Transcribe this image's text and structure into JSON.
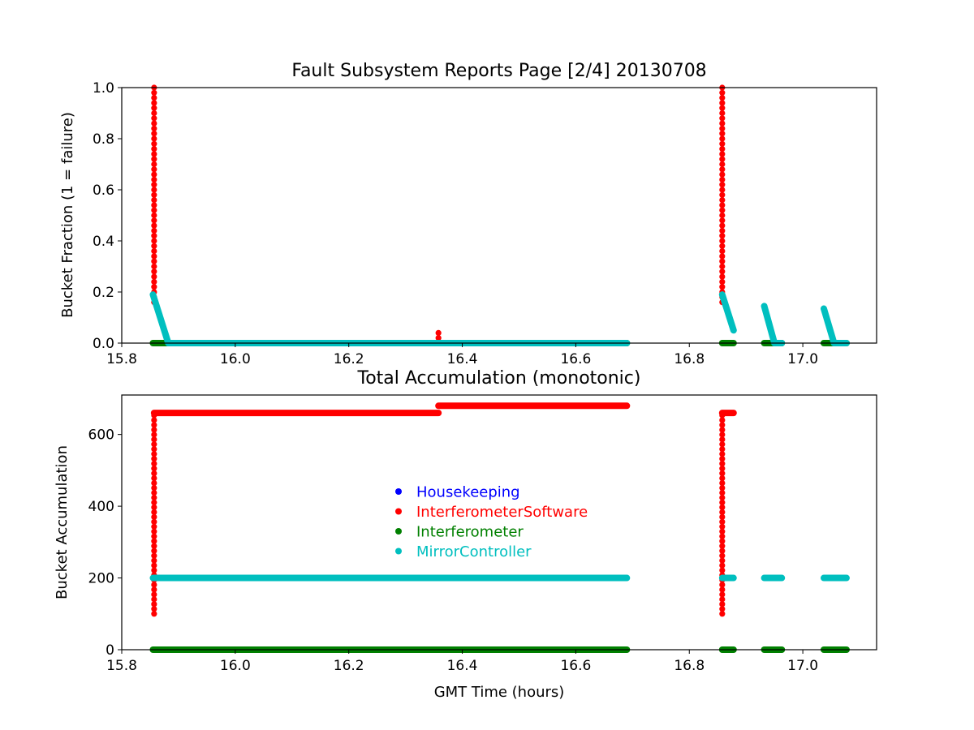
{
  "chart_data": [
    {
      "type": "scatter",
      "title": "Fault Subsystem Reports Page [2/4] 20130708",
      "xlabel": "",
      "ylabel": "Bucket Fraction (1 = failure)",
      "xlim": [
        15.8,
        17.13
      ],
      "ylim": [
        0.0,
        1.0
      ],
      "x_ticks": [
        "15.8",
        "16.0",
        "16.2",
        "16.4",
        "16.6",
        "16.8",
        "17.0"
      ],
      "y_ticks": [
        "0.0",
        "0.2",
        "0.4",
        "0.6",
        "0.8",
        "1.0"
      ],
      "grid": false,
      "series": [
        {
          "name": "InterferometerSoftware",
          "color": "#ff0000",
          "segments": [
            {
              "kind": "vertical",
              "x": 15.857,
              "y_from": 0.16,
              "y_to": 1.0,
              "step": 0.02
            },
            {
              "kind": "vertical",
              "x": 16.358,
              "y_from": 0.02,
              "y_to": 0.04,
              "step": 0.02
            },
            {
              "kind": "vertical",
              "x": 16.858,
              "y_from": 0.16,
              "y_to": 1.0,
              "step": 0.02
            }
          ]
        },
        {
          "name": "Interferometer",
          "color": "#008000",
          "segments": [
            {
              "kind": "line",
              "x_from": 15.855,
              "y_from": 0.0,
              "x_to": 16.69,
              "y_to": 0.0
            },
            {
              "kind": "line",
              "x_from": 16.858,
              "y_from": 0.0,
              "x_to": 16.878,
              "y_to": 0.0
            },
            {
              "kind": "line",
              "x_from": 16.932,
              "y_from": 0.0,
              "x_to": 16.963,
              "y_to": 0.0
            },
            {
              "kind": "line",
              "x_from": 17.037,
              "y_from": 0.0,
              "x_to": 17.077,
              "y_to": 0.0
            }
          ]
        },
        {
          "name": "MirrorController",
          "color": "#00bfbf",
          "segments": [
            {
              "kind": "line",
              "x_from": 15.855,
              "y_from": 0.19,
              "x_to": 15.882,
              "y_to": 0.0
            },
            {
              "kind": "line",
              "x_from": 15.882,
              "y_from": 0.0,
              "x_to": 16.69,
              "y_to": 0.0
            },
            {
              "kind": "line",
              "x_from": 16.858,
              "y_from": 0.19,
              "x_to": 16.878,
              "y_to": 0.05
            },
            {
              "kind": "line",
              "x_from": 16.932,
              "y_from": 0.145,
              "x_to": 16.95,
              "y_to": 0.0
            },
            {
              "kind": "line",
              "x_from": 16.95,
              "y_from": 0.0,
              "x_to": 16.963,
              "y_to": 0.0
            },
            {
              "kind": "line",
              "x_from": 17.037,
              "y_from": 0.135,
              "x_to": 17.055,
              "y_to": 0.0
            },
            {
              "kind": "line",
              "x_from": 17.055,
              "y_from": 0.0,
              "x_to": 17.077,
              "y_to": 0.0
            }
          ]
        }
      ]
    },
    {
      "type": "scatter",
      "title": "Total Accumulation (monotonic)",
      "xlabel": "GMT Time (hours)",
      "ylabel": "Bucket Accumulation",
      "xlim": [
        15.8,
        17.13
      ],
      "ylim": [
        0,
        710
      ],
      "x_ticks": [
        "15.8",
        "16.0",
        "16.2",
        "16.4",
        "16.6",
        "16.8",
        "17.0"
      ],
      "y_ticks": [
        "0",
        "200",
        "400",
        "600"
      ],
      "grid": false,
      "legend_position": "center",
      "legend": [
        "Housekeeping",
        "InterferometerSoftware",
        "Interferometer",
        "MirrorController"
      ],
      "series": [
        {
          "name": "Housekeeping",
          "color": "#0000ff",
          "segments": []
        },
        {
          "name": "InterferometerSoftware",
          "color": "#ff0000",
          "segments": [
            {
              "kind": "vertical",
              "x": 15.857,
              "y_from": 100,
              "y_to": 660,
              "step": 13.5
            },
            {
              "kind": "line",
              "x_from": 15.857,
              "y_from": 660,
              "x_to": 16.358,
              "y_to": 660
            },
            {
              "kind": "line",
              "x_from": 16.358,
              "y_from": 680,
              "x_to": 16.69,
              "y_to": 680
            },
            {
              "kind": "vertical",
              "x": 16.858,
              "y_from": 100,
              "y_to": 660,
              "step": 13.5
            },
            {
              "kind": "line",
              "x_from": 16.858,
              "y_from": 660,
              "x_to": 16.878,
              "y_to": 660
            }
          ]
        },
        {
          "name": "Interferometer",
          "color": "#008000",
          "segments": [
            {
              "kind": "line",
              "x_from": 15.855,
              "y_from": 0,
              "x_to": 16.69,
              "y_to": 0
            },
            {
              "kind": "line",
              "x_from": 16.858,
              "y_from": 0,
              "x_to": 16.878,
              "y_to": 0
            },
            {
              "kind": "line",
              "x_from": 16.932,
              "y_from": 0,
              "x_to": 16.963,
              "y_to": 0
            },
            {
              "kind": "line",
              "x_from": 17.037,
              "y_from": 0,
              "x_to": 17.077,
              "y_to": 0
            }
          ]
        },
        {
          "name": "MirrorController",
          "color": "#00bfbf",
          "segments": [
            {
              "kind": "line",
              "x_from": 15.855,
              "y_from": 200,
              "x_to": 16.69,
              "y_to": 200
            },
            {
              "kind": "line",
              "x_from": 16.858,
              "y_from": 200,
              "x_to": 16.878,
              "y_to": 200
            },
            {
              "kind": "line",
              "x_from": 16.932,
              "y_from": 200,
              "x_to": 16.963,
              "y_to": 200
            },
            {
              "kind": "line",
              "x_from": 17.037,
              "y_from": 200,
              "x_to": 17.077,
              "y_to": 200
            }
          ]
        }
      ]
    }
  ]
}
